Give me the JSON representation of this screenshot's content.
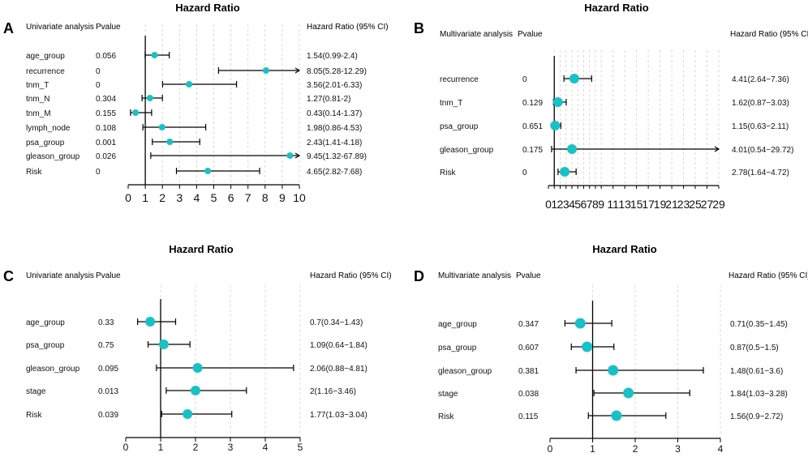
{
  "figure": {
    "panels": [
      {
        "letter": "A",
        "title": "Hazard Ratio",
        "col1_header": "Univariate analysis",
        "col2_header": "Pvalue",
        "col3_header": "Hazard Ratio (95% CI)"
      },
      {
        "letter": "B",
        "title": "Hazard Ratio",
        "col1_header": "Multivariate analysis",
        "col2_header": "Pvalue",
        "col3_header": "Hazard Ratio (95% CI)"
      },
      {
        "letter": "C",
        "title": "Hazard Ratio",
        "col1_header": "Univariate analysis",
        "col2_header": "Pvalue",
        "col3_header": "Hazard Ratio (95% CI)"
      },
      {
        "letter": "D",
        "title": "Hazard Ratio",
        "col1_header": "Multivariate analysis",
        "col2_header": "Pvalue",
        "col3_header": "Hazard Ratio (95% CI)"
      }
    ]
  },
  "chart_data": [
    {
      "type": "forest",
      "title": "Hazard Ratio",
      "label": "A",
      "analysis": "Univariate analysis",
      "reference_line": 1,
      "xlim": [
        0,
        10
      ],
      "xticks": [
        "0",
        "1",
        "2",
        "3",
        "4",
        "5",
        "6",
        "7",
        "8",
        "9",
        "10"
      ],
      "rows": [
        {
          "name": "age_group",
          "pvalue": "0.056",
          "hr": 1.54,
          "lo": 0.99,
          "hi": 2.4,
          "text": "1.54(0.99-2.4)"
        },
        {
          "name": "recurrence",
          "pvalue": "0",
          "hr": 8.05,
          "lo": 5.28,
          "hi": 12.29,
          "text": "8.05(5.28-12.29)"
        },
        {
          "name": "tnm_T",
          "pvalue": "0",
          "hr": 3.56,
          "lo": 2.01,
          "hi": 6.33,
          "text": "3.56(2.01-6.33)"
        },
        {
          "name": "tnm_N",
          "pvalue": "0.304",
          "hr": 1.27,
          "lo": 0.81,
          "hi": 2,
          "text": "1.27(0.81-2)"
        },
        {
          "name": "tnm_M",
          "pvalue": "0.155",
          "hr": 0.43,
          "lo": 0.14,
          "hi": 1.37,
          "text": "0.43(0.14-1.37)"
        },
        {
          "name": "lymph_node",
          "pvalue": "0.108",
          "hr": 1.98,
          "lo": 0.86,
          "hi": 4.53,
          "text": "1.98(0.86-4.53)"
        },
        {
          "name": "psa_group",
          "pvalue": "0.001",
          "hr": 2.43,
          "lo": 1.41,
          "hi": 4.18,
          "text": "2.43(1.41-4.18)"
        },
        {
          "name": "gleason_group",
          "pvalue": "0.026",
          "hr": 9.45,
          "lo": 1.32,
          "hi": 67.89,
          "text": "9.45(1.32-67.89)"
        },
        {
          "name": "Risk",
          "pvalue": "0",
          "hr": 4.65,
          "lo": 2.82,
          "hi": 7.68,
          "text": "4.65(2.82-7.68)"
        }
      ]
    },
    {
      "type": "forest",
      "title": "Hazard Ratio",
      "label": "B",
      "analysis": "Multivariate analysis",
      "reference_line": 1,
      "xlim": [
        0,
        29
      ],
      "xticks": [
        "0",
        "1",
        "2",
        "3",
        "4",
        "5",
        "6",
        "7",
        "8",
        "9",
        "11",
        "13",
        "15",
        "17",
        "19",
        "21",
        "23",
        "25",
        "27",
        "29"
      ],
      "rows": [
        {
          "name": "recurrence",
          "pvalue": "0",
          "hr": 4.41,
          "lo": 2.64,
          "hi": 7.36,
          "text": "4.41(2.64−7.36)"
        },
        {
          "name": "tnm_T",
          "pvalue": "0.129",
          "hr": 1.62,
          "lo": 0.87,
          "hi": 3.03,
          "text": "1.62(0.87−3.03)"
        },
        {
          "name": "psa_group",
          "pvalue": "0.651",
          "hr": 1.15,
          "lo": 0.63,
          "hi": 2.11,
          "text": "1.15(0.63−2.11)"
        },
        {
          "name": "gleason_group",
          "pvalue": "0.175",
          "hr": 4.01,
          "lo": 0.54,
          "hi": 29.72,
          "text": "4.01(0.54−29.72)"
        },
        {
          "name": "Risk",
          "pvalue": "0",
          "hr": 2.78,
          "lo": 1.64,
          "hi": 4.72,
          "text": "2.78(1.64−4.72)"
        }
      ]
    },
    {
      "type": "forest",
      "title": "Hazard Ratio",
      "label": "C",
      "analysis": "Univariate analysis",
      "reference_line": 1,
      "xlim": [
        0,
        5
      ],
      "xticks": [
        "0",
        "1",
        "2",
        "3",
        "4",
        "5"
      ],
      "rows": [
        {
          "name": "age_group",
          "pvalue": "0.33",
          "hr": 0.7,
          "lo": 0.34,
          "hi": 1.43,
          "text": "0.7(0.34−1.43)"
        },
        {
          "name": "psa_group",
          "pvalue": "0.75",
          "hr": 1.09,
          "lo": 0.64,
          "hi": 1.84,
          "text": "1.09(0.64−1.84)"
        },
        {
          "name": "gleason_group",
          "pvalue": "0.095",
          "hr": 2.06,
          "lo": 0.88,
          "hi": 4.81,
          "text": "2.06(0.88−4.81)"
        },
        {
          "name": "stage",
          "pvalue": "0.013",
          "hr": 2,
          "lo": 1.16,
          "hi": 3.46,
          "text": "2(1.16−3.46)"
        },
        {
          "name": "Risk",
          "pvalue": "0.039",
          "hr": 1.77,
          "lo": 1.03,
          "hi": 3.04,
          "text": "1.77(1.03−3.04)"
        }
      ]
    },
    {
      "type": "forest",
      "title": "Hazard Ratio",
      "label": "D",
      "analysis": "Multivariate analysis",
      "reference_line": 1,
      "xlim": [
        0,
        4
      ],
      "xticks": [
        "0",
        "1",
        "2",
        "3",
        "4"
      ],
      "rows": [
        {
          "name": "age_group",
          "pvalue": "0.347",
          "hr": 0.71,
          "lo": 0.35,
          "hi": 1.45,
          "text": "0.71(0.35−1.45)"
        },
        {
          "name": "psa_group",
          "pvalue": "0.607",
          "hr": 0.87,
          "lo": 0.5,
          "hi": 1.5,
          "text": "0.87(0.5−1.5)"
        },
        {
          "name": "gleason_group",
          "pvalue": "0.381",
          "hr": 1.48,
          "lo": 0.61,
          "hi": 3.6,
          "text": "1.48(0.61−3.6)"
        },
        {
          "name": "stage",
          "pvalue": "0.038",
          "hr": 1.84,
          "lo": 1.03,
          "hi": 3.28,
          "text": "1.84(1.03−3.28)"
        },
        {
          "name": "Risk",
          "pvalue": "0.115",
          "hr": 1.56,
          "lo": 0.9,
          "hi": 2.72,
          "text": "1.56(0.9−2.72)"
        }
      ]
    }
  ],
  "colors": {
    "point": "#19c1c6",
    "line": "#000000",
    "grid": "#cfcfcf"
  }
}
